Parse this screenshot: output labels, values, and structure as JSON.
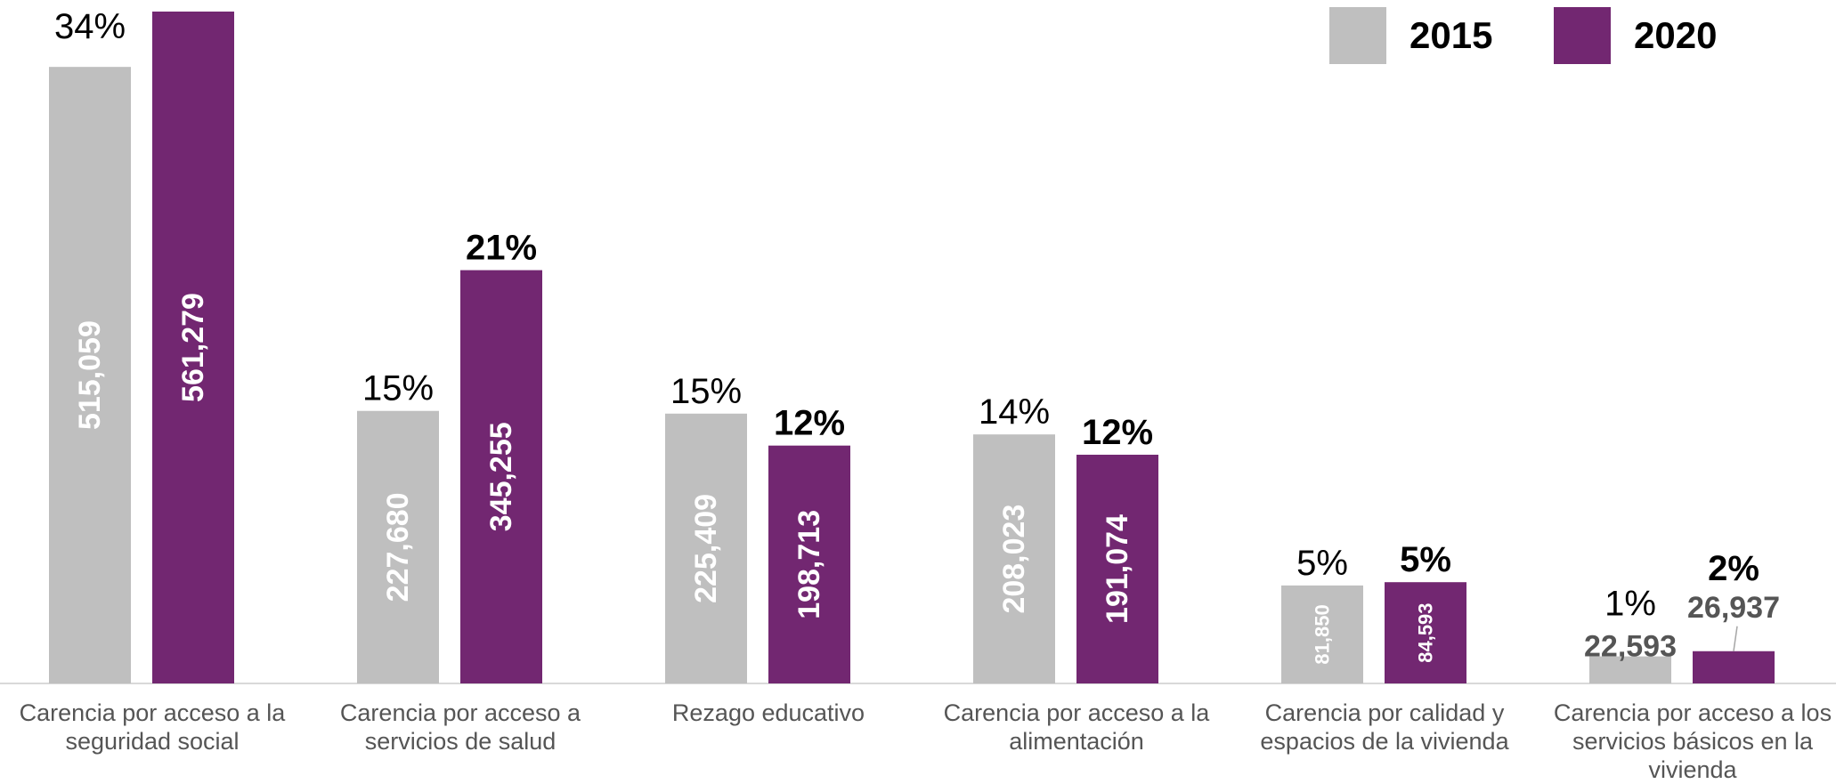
{
  "chart_data": {
    "type": "bar",
    "categories": [
      "Carencia por acceso a la seguridad social",
      "Carencia por acceso a servicios de salud",
      "Rezago educativo",
      "Carencia por acceso a la alimentación",
      "Carencia por calidad y espacios de la vivienda",
      "Carencia por acceso a los servicios básicos en la vivienda"
    ],
    "series": [
      {
        "name": "2015",
        "color": "#BFBFBF",
        "values": [
          515059,
          227680,
          225409,
          208023,
          81850,
          22593
        ],
        "value_labels": [
          "515,059",
          "227,680",
          "225,409",
          "208,023",
          "81,850",
          "22,593"
        ],
        "percent_labels": [
          "34%",
          "15%",
          "15%",
          "14%",
          "5%",
          "1%"
        ]
      },
      {
        "name": "2020",
        "color": "#722771",
        "values": [
          561279,
          345255,
          198713,
          191074,
          84593,
          26937
        ],
        "value_labels": [
          "561,279",
          "345,255",
          "198,713",
          "191,074",
          "84,593",
          "26,937"
        ],
        "percent_labels": [
          "",
          "21%",
          "12%",
          "12%",
          "5%",
          "2%"
        ]
      }
    ],
    "ylim": [
      0,
      561279
    ],
    "grid": false,
    "legend": "top-right",
    "title": "",
    "xlabel": "",
    "ylabel": ""
  }
}
